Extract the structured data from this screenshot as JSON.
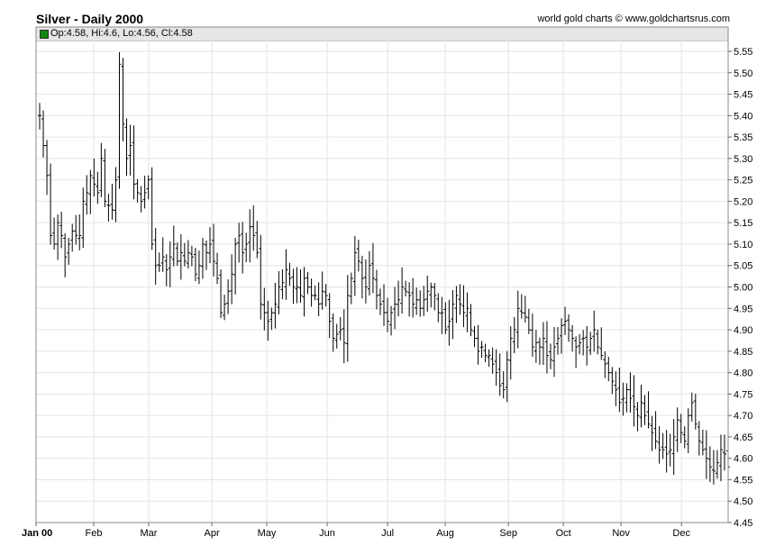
{
  "header": {
    "title": "Silver - Daily 2000",
    "credit": "world gold charts © www.goldchartsrus.com"
  },
  "ohlc_readout": {
    "text": "Op:4.58, Hi:4.6, Lo:4.56, Cl:4.58"
  },
  "colors": {
    "bars": "#000000",
    "grid": "#e4e4e4",
    "swatch": "#118811"
  },
  "chart_data": {
    "type": "ohlc",
    "title": "Silver - Daily 2000",
    "ylim": [
      4.45,
      5.55
    ],
    "y_ticks": [
      "5.55",
      "5.50",
      "5.45",
      "5.40",
      "5.35",
      "5.30",
      "5.25",
      "5.20",
      "5.15",
      "5.10",
      "5.05",
      "5.00",
      "4.95",
      "4.90",
      "4.85",
      "4.80",
      "4.75",
      "4.70",
      "4.65",
      "4.60",
      "4.55",
      "4.50",
      "4.45"
    ],
    "x_labels": [
      "Jan 00",
      "Feb",
      "Mar",
      "Apr",
      "May",
      "Jun",
      "Jul",
      "Aug",
      "Sep",
      "Oct",
      "Nov",
      "Dec"
    ],
    "grid": true,
    "axis_side": "right",
    "approx_closes": [
      5.4,
      5.33,
      5.26,
      5.12,
      5.1,
      5.15,
      5.12,
      5.07,
      5.1,
      5.13,
      5.12,
      5.12,
      5.2,
      5.22,
      5.26,
      5.24,
      5.22,
      5.3,
      5.2,
      5.19,
      5.18,
      5.25,
      5.52,
      5.38,
      5.3,
      5.33,
      5.24,
      5.22,
      5.2,
      5.22,
      5.25,
      5.1,
      5.05,
      5.05,
      5.07,
      5.04,
      5.07,
      5.1,
      5.06,
      5.08,
      5.06,
      5.08,
      5.07,
      5.03,
      5.05,
      5.1,
      5.08,
      5.1,
      5.06,
      5.02,
      4.94,
      4.96,
      4.99,
      5.03,
      5.1,
      5.12,
      5.08,
      5.1,
      5.14,
      5.12,
      5.08,
      4.96,
      4.94,
      4.92,
      4.94,
      4.96,
      5.0,
      5.01,
      5.04,
      5.02,
      5.0,
      5.0,
      4.98,
      5.02,
      5.0,
      4.98,
      4.98,
      4.96,
      4.99,
      4.98,
      4.92,
      4.88,
      4.89,
      4.9,
      4.87,
      4.98,
      5.02,
      5.08,
      5.06,
      5.02,
      5.0,
      5.05,
      5.02,
      4.98,
      4.96,
      4.94,
      4.92,
      4.94,
      4.96,
      4.97,
      5.0,
      4.99,
      4.98,
      4.96,
      4.97,
      4.95,
      4.97,
      4.99,
      5.0,
      4.98,
      4.94,
      4.94,
      4.9,
      4.92,
      4.96,
      4.98,
      4.96,
      4.94,
      4.95,
      4.9,
      4.88,
      4.85,
      4.86,
      4.84,
      4.84,
      4.82,
      4.8,
      4.77,
      4.76,
      4.83,
      4.88,
      4.9,
      4.95,
      4.94,
      4.93,
      4.9,
      4.86,
      4.87,
      4.86,
      4.88,
      4.84,
      4.83,
      4.86,
      4.88,
      4.91,
      4.92,
      4.9,
      4.88,
      4.86,
      4.87,
      4.88,
      4.86,
      4.88,
      4.9,
      4.86,
      4.84,
      4.82,
      4.8,
      4.78,
      4.76,
      4.73,
      4.74,
      4.76,
      4.74,
      4.72,
      4.7,
      4.73,
      4.7,
      4.68,
      4.66,
      4.64,
      4.62,
      4.62,
      4.61,
      4.62,
      4.65,
      4.69,
      4.66,
      4.64,
      4.7,
      4.73,
      4.68,
      4.64,
      4.62,
      4.6,
      4.58,
      4.57,
      4.59,
      4.62,
      4.61,
      4.58
    ]
  }
}
